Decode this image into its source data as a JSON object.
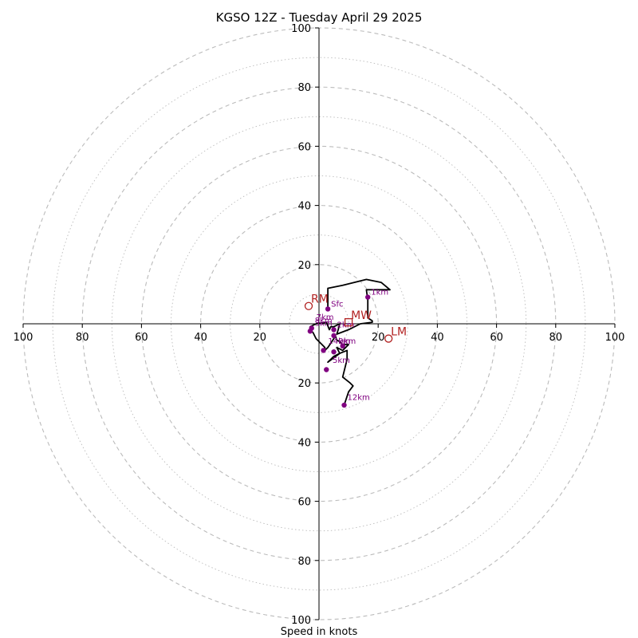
{
  "chart_data": {
    "type": "line",
    "title": "KGSO 12Z - Tuesday April 29 2025",
    "xlabel": "Speed in knots",
    "rlim": [
      0,
      100
    ],
    "grid": {
      "major_step": 20,
      "minor_step": 10
    },
    "ticks": {
      "right": [
        "20",
        "40",
        "60",
        "80",
        "100"
      ],
      "left": [
        "20",
        "40",
        "60",
        "80",
        "100"
      ],
      "up": [
        "20",
        "40",
        "60",
        "80",
        "100"
      ],
      "down": [
        "20",
        "40",
        "60",
        "80",
        "100"
      ]
    },
    "colors": {
      "trace": "#000000",
      "height_points": "#800080",
      "motion_markers": "#b22222",
      "grid": "#bbbbbb"
    },
    "series": [
      {
        "values": [
          [
            3,
            5
          ],
          [
            3,
            12
          ],
          [
            8,
            13
          ],
          [
            16,
            15
          ],
          [
            21,
            14
          ],
          [
            24,
            11.5
          ],
          [
            16,
            11.5
          ],
          [
            16.5,
            8
          ],
          [
            16.5,
            2
          ],
          [
            18,
            1
          ],
          [
            18,
            0.5
          ],
          [
            14,
            0
          ],
          [
            10,
            -2
          ],
          [
            6,
            -3.5
          ],
          [
            6.5,
            -2
          ],
          [
            7,
            0
          ],
          [
            5,
            -1
          ],
          [
            4,
            -1
          ],
          [
            3.5,
            -2
          ],
          [
            2.5,
            0.5
          ],
          [
            -1,
            0
          ],
          [
            -3,
            -1
          ],
          [
            -3,
            -2
          ],
          [
            -2,
            -3
          ],
          [
            -1,
            -5
          ],
          [
            1,
            -7
          ],
          [
            2,
            -8
          ],
          [
            2,
            -9
          ],
          [
            3,
            -8
          ],
          [
            5,
            -5
          ],
          [
            5.5,
            -4
          ],
          [
            6,
            -5.5
          ],
          [
            7,
            -6
          ],
          [
            8,
            -7
          ],
          [
            10,
            -7
          ],
          [
            9,
            -8
          ],
          [
            8,
            -9
          ],
          [
            6,
            -8
          ],
          [
            7,
            -10
          ],
          [
            3,
            -13
          ],
          [
            5,
            -11
          ],
          [
            7,
            -10
          ],
          [
            9.5,
            -9
          ],
          [
            9.5,
            -12
          ],
          [
            9,
            -14
          ],
          [
            8,
            -18
          ],
          [
            10.5,
            -20
          ],
          [
            11.5,
            -21
          ],
          [
            10,
            -23
          ],
          [
            8.5,
            -27.5
          ]
        ]
      }
    ],
    "height_points": [
      {
        "label": "Sfc",
        "u": 3,
        "v": 5
      },
      {
        "label": "1km",
        "u": 16.5,
        "v": 9
      },
      {
        "label": "2km",
        "u": 5,
        "v": -2
      },
      {
        "label": "3km",
        "u": -2.5,
        "v": -1.5
      },
      {
        "label": "",
        "u": 5,
        "v": -4
      },
      {
        "label": "",
        "u": -3,
        "v": -2.5
      },
      {
        "label": "",
        "u": 1.5,
        "v": -9
      },
      {
        "label": "",
        "u": 5,
        "v": -9.5
      },
      {
        "label": "",
        "u": 8,
        "v": -7.5
      },
      {
        "label": "",
        "u": 2.5,
        "v": -15.5
      },
      {
        "label": "",
        "u": 8.5,
        "v": -27.5
      }
    ],
    "extra_labels": [
      {
        "label": "7km",
        "u": -2,
        "v": 0.5
      },
      {
        "label": "8km",
        "u": -2.5,
        "v": -0.5
      },
      {
        "label": "14km",
        "u": 2,
        "v": -7.5
      },
      {
        "label": "9km",
        "u": 5.5,
        "v": -7.5
      },
      {
        "label": "5km",
        "u": 3.5,
        "v": -14
      },
      {
        "label": "12km",
        "u": 8.5,
        "v": -26.5
      }
    ],
    "motion_markers": [
      {
        "label": "RM",
        "u": -3.5,
        "v": 6
      },
      {
        "label": "LM",
        "u": 23.5,
        "v": -5
      },
      {
        "label": "MW",
        "u": 10,
        "v": 0.5
      }
    ]
  }
}
